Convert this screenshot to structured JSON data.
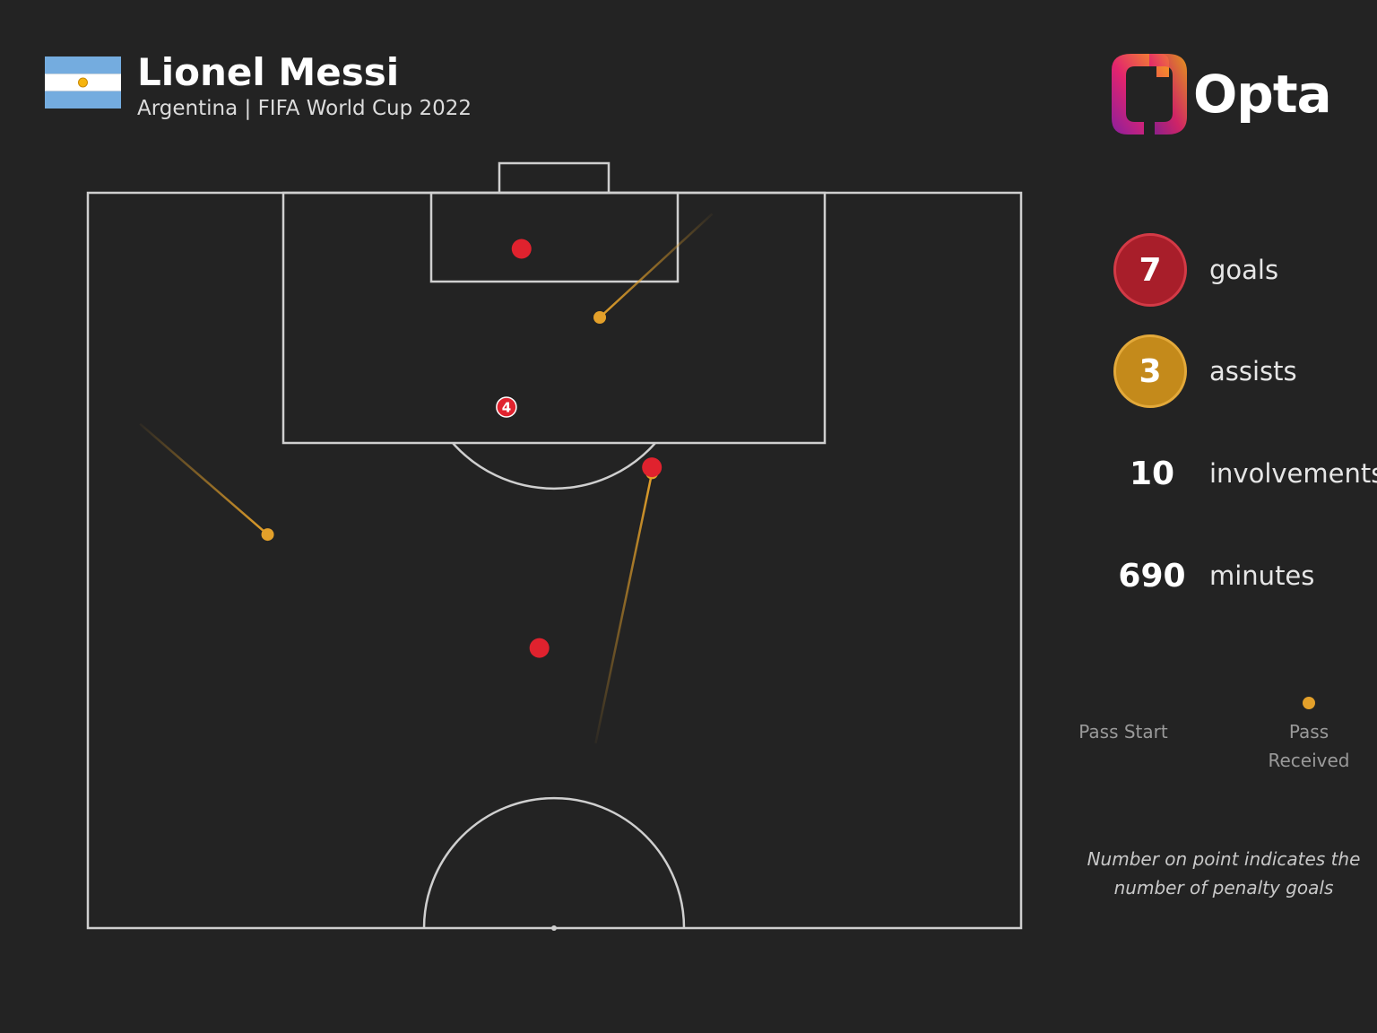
{
  "header": {
    "player_name": "Lionel Messi",
    "subtitle": "Argentina | FIFA World Cup 2022",
    "flag_icon": "argentina-flag-icon",
    "brand": "Opta"
  },
  "stats": [
    {
      "key": "goals",
      "value": "7",
      "label": "goals",
      "style": "goals"
    },
    {
      "key": "assists",
      "value": "3",
      "label": "assists",
      "style": "assists"
    },
    {
      "key": "involvements",
      "value": "10",
      "label": "involvements",
      "style": "plain"
    },
    {
      "key": "minutes",
      "value": "690",
      "label": "minutes",
      "style": "plain"
    }
  ],
  "legend": {
    "pass_start": "Pass Start",
    "pass_received": "Pass Received",
    "note": "Number on point indicates the number of penalty goals"
  },
  "colors": {
    "background": "#232323",
    "pitch_lines": "#cfcfcf",
    "goal": "#e0222e",
    "assist": "#e3a02a"
  },
  "chart_data": {
    "type": "scatter",
    "coordinate_system": "pitch half, x = metres from left touchline (0-68), y = metres from goal line (0-52.5)",
    "shots_goals": [
      {
        "x": 31.6,
        "y": 4.0,
        "penalty_goals": null
      },
      {
        "x": 30.5,
        "y": 15.3,
        "penalty_goals": "4"
      },
      {
        "x": 41.1,
        "y": 19.6,
        "penalty_goals": null
      },
      {
        "x": 32.9,
        "y": 32.5,
        "penalty_goals": null
      }
    ],
    "assists": [
      {
        "start_x": 45.5,
        "start_y": 1.5,
        "end_x": 37.3,
        "end_y": 8.9
      },
      {
        "start_x": 3.8,
        "start_y": 16.5,
        "end_x": 13.1,
        "end_y": 24.4
      },
      {
        "start_x": 37.0,
        "start_y": 39.3,
        "end_x": 41.1,
        "end_y": 20.0
      }
    ]
  }
}
